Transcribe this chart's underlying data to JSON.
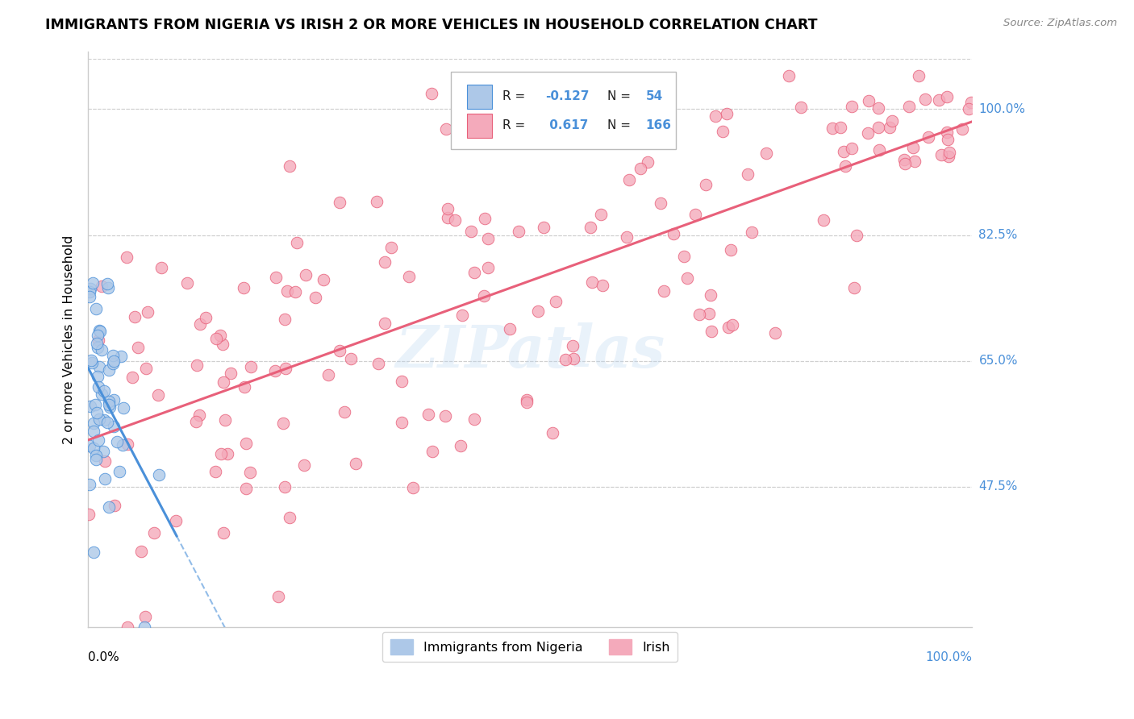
{
  "title": "IMMIGRANTS FROM NIGERIA VS IRISH 2 OR MORE VEHICLES IN HOUSEHOLD CORRELATION CHART",
  "source": "Source: ZipAtlas.com",
  "ylabel": "2 or more Vehicles in Household",
  "legend_label1": "Immigrants from Nigeria",
  "legend_label2": "Irish",
  "r1": -0.127,
  "n1": 54,
  "r2": 0.617,
  "n2": 166,
  "color_blue": "#adc8e8",
  "color_pink": "#f4aabb",
  "color_blue_line": "#4a90d9",
  "color_pink_line": "#e8607a",
  "watermark": "ZIPatlas",
  "ytick_vals": [
    0.475,
    0.65,
    0.825,
    1.0
  ],
  "ytick_labels": [
    "47.5%",
    "65.0%",
    "82.5%",
    "100.0%"
  ],
  "ylim_min": 0.28,
  "ylim_max": 1.08,
  "xlim_min": 0.0,
  "xlim_max": 1.0
}
